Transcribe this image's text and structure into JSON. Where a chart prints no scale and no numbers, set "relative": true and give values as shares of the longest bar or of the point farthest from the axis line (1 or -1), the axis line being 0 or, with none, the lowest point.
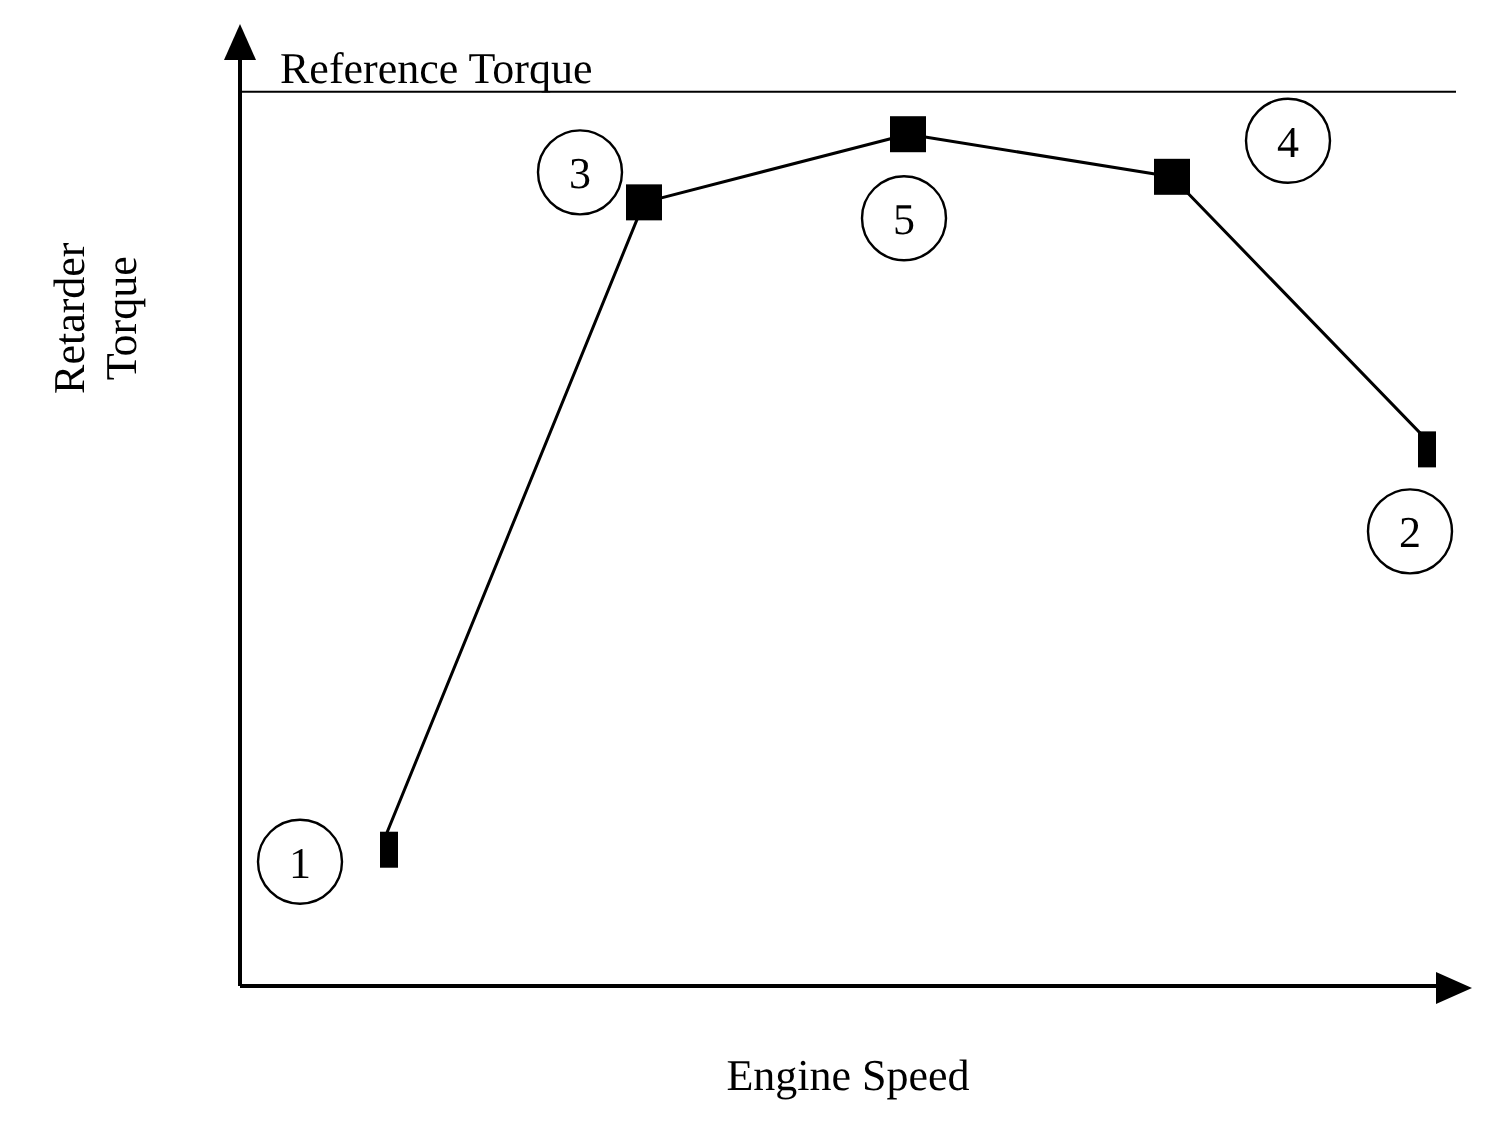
{
  "chart_data": {
    "type": "line",
    "relative": true,
    "marker": "square",
    "line_style": "solid",
    "xlabel": "Engine Speed",
    "ylabel": "Retarder Torque",
    "categories": [
      null,
      null,
      null,
      null,
      null
    ],
    "series": [
      {
        "color": "#000000",
        "values": [
          0.16,
          0.92,
          1.0,
          0.95,
          0.63
        ]
      }
    ],
    "ref_lines": [
      {
        "axis": "y",
        "value": 1.05,
        "label": "Reference Torque",
        "color": "#000000"
      }
    ],
    "annotations": [
      "1",
      "3",
      "5",
      "4",
      "2"
    ]
  }
}
